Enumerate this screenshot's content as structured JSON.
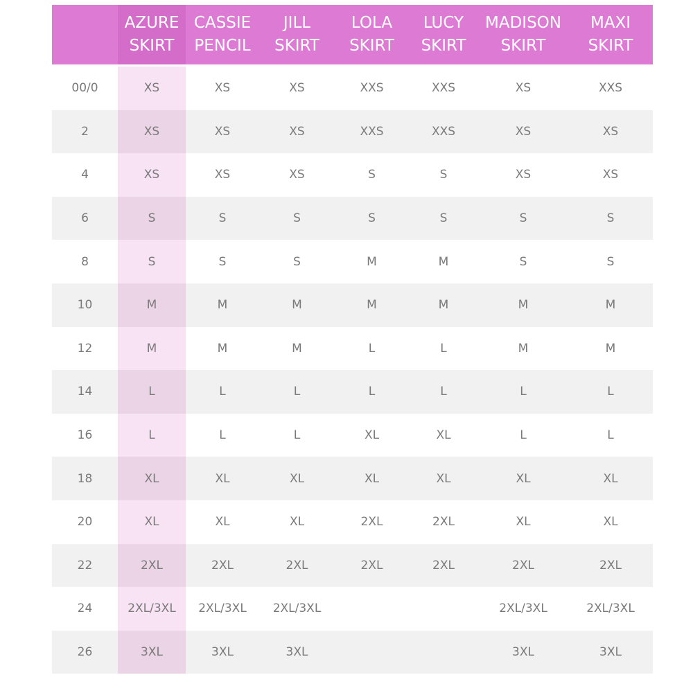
{
  "table": {
    "header": [
      [
        "AZURE",
        "SKIRT"
      ],
      [
        "CASSIE",
        "PENCIL"
      ],
      [
        "JILL",
        "SKIRT"
      ],
      [
        "LOLA",
        "SKIRT"
      ],
      [
        "LUCY",
        "SKIRT"
      ],
      [
        "MADISON",
        "SKIRT"
      ],
      [
        "MAXI",
        "SKIRT"
      ]
    ],
    "rows": [
      [
        "00/0",
        "XS",
        "XS",
        "XS",
        "XXS",
        "XXS",
        "XS",
        "XXS"
      ],
      [
        "2",
        "XS",
        "XS",
        "XS",
        "XXS",
        "XXS",
        "XS",
        "XS"
      ],
      [
        "4",
        "XS",
        "XS",
        "XS",
        "S",
        "S",
        "XS",
        "XS"
      ],
      [
        "6",
        "S",
        "S",
        "S",
        "S",
        "S",
        "S",
        "S"
      ],
      [
        "8",
        "S",
        "S",
        "S",
        "M",
        "M",
        "S",
        "S"
      ],
      [
        "10",
        "M",
        "M",
        "M",
        "M",
        "M",
        "M",
        "M"
      ],
      [
        "12",
        "M",
        "M",
        "M",
        "L",
        "L",
        "M",
        "M"
      ],
      [
        "14",
        "L",
        "L",
        "L",
        "L",
        "L",
        "L",
        "L"
      ],
      [
        "16",
        "L",
        "L",
        "L",
        "XL",
        "XL",
        "L",
        "L"
      ],
      [
        "18",
        "XL",
        "XL",
        "XL",
        "XL",
        "XL",
        "XL",
        "XL"
      ],
      [
        "20",
        "XL",
        "XL",
        "XL",
        "2XL",
        "2XL",
        "XL",
        "XL"
      ],
      [
        "22",
        "2XL",
        "2XL",
        "2XL",
        "2XL",
        "2XL",
        "2XL",
        "2XL"
      ],
      [
        "24",
        "2XL/3XL",
        "2XL/3XL",
        "2XL/3XL",
        null,
        null,
        "2XL/3XL",
        "2XL/3XL"
      ],
      [
        "26",
        "3XL",
        "3XL",
        "3XL",
        null,
        null,
        "3XL",
        "3XL"
      ]
    ]
  }
}
